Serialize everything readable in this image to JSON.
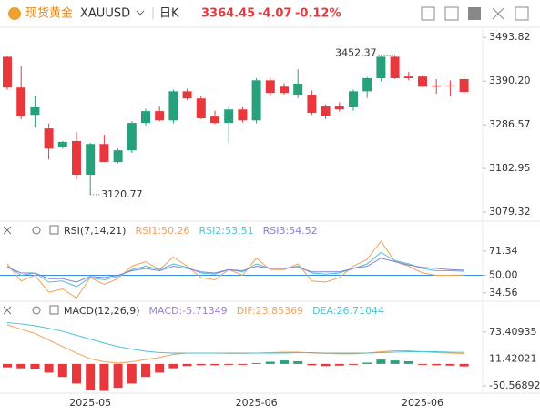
{
  "header": {
    "name": "现货黄金",
    "symbol": "XAUUSD",
    "period": "日K",
    "price": "3364.45",
    "change": "-4.07",
    "change_pct": "-0.12%"
  },
  "chart_data": [
    {
      "type": "candlestick",
      "up_color": "#26a17b",
      "down_color": "#e8383d",
      "open": [
        3448,
        3375,
        3310,
        3278,
        3235,
        3248,
        3168,
        3241,
        3198,
        3226,
        3291,
        3319,
        3297,
        3366,
        3349,
        3306,
        3291,
        3323,
        3297,
        3392,
        3377,
        3358,
        3358,
        3330,
        3330,
        3328,
        3366,
        3397,
        3448,
        3401,
        3401,
        3380,
        3380,
        3395
      ],
      "high": [
        3450,
        3425,
        3356,
        3290,
        3248,
        3269,
        3244,
        3263,
        3230,
        3295,
        3325,
        3330,
        3370,
        3372,
        3355,
        3320,
        3330,
        3328,
        3397,
        3398,
        3385,
        3418,
        3368,
        3335,
        3340,
        3370,
        3400,
        3450,
        3452.37,
        3412,
        3405,
        3395,
        3392,
        3405
      ],
      "low": [
        3370,
        3300,
        3280,
        3204,
        3230,
        3157,
        3120.77,
        3198,
        3195,
        3220,
        3285,
        3295,
        3290,
        3345,
        3300,
        3288,
        3243,
        3292,
        3290,
        3355,
        3358,
        3350,
        3310,
        3300,
        3318,
        3320,
        3350,
        3390,
        3395,
        3392,
        3375,
        3360,
        3355,
        3358
      ],
      "close": [
        3375,
        3306,
        3328,
        3230,
        3246,
        3168,
        3241,
        3198,
        3226,
        3291,
        3319,
        3297,
        3366,
        3349,
        3302,
        3291,
        3323,
        3297,
        3392,
        3362,
        3362,
        3384,
        3315,
        3308,
        3323,
        3366,
        3397,
        3448,
        3397,
        3397,
        3377,
        3377,
        3378,
        3364.45
      ],
      "ylim": [
        3060,
        3518
      ],
      "yticks": [
        3493.82,
        {
          "value": 3390.2,
          "label": "3390.20"
        },
        3286.57,
        3182.95,
        3079.32
      ]
    },
    {
      "type": "line",
      "title": "RSI(7,14,21)",
      "ylim": [
        28,
        96
      ],
      "yticks": [
        71.34,
        {
          "value": 50,
          "label": "50.00"
        },
        34.56
      ],
      "reference_line": {
        "value": 50,
        "color": "#3d8fe0"
      },
      "series": [
        {
          "name": "RSI1:50.26",
          "color": "#f2a25a",
          "values": [
            60,
            45,
            50,
            35,
            38,
            30,
            48,
            42,
            47,
            58,
            62,
            55,
            66,
            58,
            48,
            46,
            55,
            50,
            65,
            55,
            55,
            60,
            45,
            44,
            48,
            58,
            64,
            80,
            62,
            58,
            52,
            50,
            50,
            50.26
          ]
        },
        {
          "name": "RSI2:53.51",
          "color": "#4cc3d3",
          "values": [
            58,
            50,
            52,
            44,
            45,
            40,
            48,
            46,
            49,
            55,
            58,
            55,
            60,
            57,
            52,
            51,
            55,
            53,
            60,
            56,
            56,
            58,
            52,
            51,
            52,
            56,
            60,
            70,
            63,
            60,
            56,
            54,
            54,
            53.51
          ]
        },
        {
          "name": "RSI3:54.52",
          "color": "#8a7fd6",
          "values": [
            57,
            52,
            52,
            47,
            47,
            44,
            49,
            48,
            50,
            54,
            56,
            54,
            58,
            56,
            53,
            52,
            55,
            54,
            58,
            56,
            56,
            57,
            53,
            53,
            53,
            56,
            58,
            65,
            62,
            59,
            57,
            56,
            55,
            54.52
          ]
        }
      ]
    },
    {
      "type": "macd",
      "title": "MACD(12,26,9)",
      "ylim": [
        -63,
        140
      ],
      "yticks": [
        73.40935,
        11.42021,
        -50.56892
      ],
      "categories": [
        null,
        null,
        null,
        null,
        null,
        null,
        "2025-05",
        null,
        null,
        null,
        null,
        null,
        null,
        null,
        null,
        null,
        null,
        null,
        "2025-06",
        null,
        null,
        null,
        null,
        null,
        null,
        null,
        null,
        null,
        null,
        null,
        "2025-06",
        null,
        null,
        null
      ],
      "series": [
        {
          "name": "MACD:-5.71349",
          "type": "bar",
          "color": "#9b7fd6",
          "up_color": "#26a17b",
          "down_color": "#e8383d",
          "values": [
            -8,
            -10,
            -12,
            -20,
            -30,
            -45,
            -60,
            -62,
            -55,
            -45,
            -30,
            -20,
            -10,
            -5,
            -3,
            -3,
            -2,
            -2,
            2,
            5,
            8,
            6,
            -3,
            -5,
            -4,
            -2,
            3,
            10,
            8,
            6,
            -1,
            -3,
            -4,
            -5.71349
          ]
        },
        {
          "name": "DIF:23.85369",
          "type": "line",
          "color": "#f2a25a",
          "values": [
            90,
            80,
            70,
            55,
            40,
            25,
            12,
            5,
            2,
            5,
            10,
            15,
            22,
            25,
            25,
            25,
            24,
            24,
            25,
            26,
            27,
            27,
            25,
            24,
            23,
            23,
            25,
            28,
            30,
            30,
            28,
            26,
            25,
            23.85369
          ]
        },
        {
          "name": "DEA:26.71044",
          "type": "line",
          "color": "#4cc3d3",
          "values": [
            95,
            92,
            88,
            82,
            75,
            66,
            57,
            48,
            40,
            34,
            29,
            26,
            25,
            25,
            25,
            25,
            25,
            25,
            25,
            25,
            25,
            26,
            26,
            25,
            25,
            25,
            25,
            26,
            27,
            28,
            28,
            28,
            27,
            26.71044
          ]
        }
      ]
    }
  ]
}
